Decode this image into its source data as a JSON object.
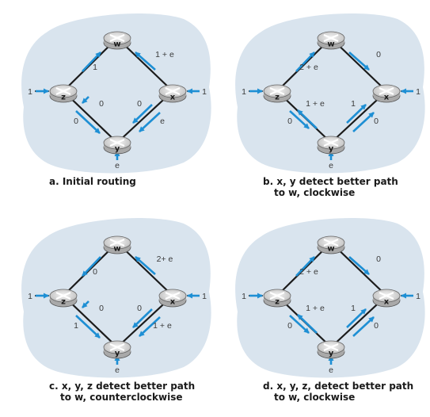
{
  "panels": [
    {
      "caption_letter": "a.",
      "caption_lines": [
        "Initial routing"
      ],
      "routers": {
        "w": "w",
        "x": "x",
        "y": "y",
        "z": "z"
      },
      "ext_labels": {
        "z": "1",
        "x": "1",
        "y": "e"
      },
      "link_labels": {
        "zw": "1",
        "xw": "1 + e",
        "zy_up": "0",
        "zy_down": "0",
        "xy_up": "0",
        "xy_down": "e"
      },
      "arrows": {
        "zw": "to-w",
        "xw": "to-w",
        "zy": "z-to-y",
        "xy": "x-to-y"
      }
    },
    {
      "caption_letter": "b.",
      "caption_lines": [
        "x, y detect better path",
        "to w, clockwise"
      ],
      "routers": {
        "w": "w",
        "x": "x",
        "y": "y",
        "z": "z"
      },
      "ext_labels": {
        "z": "1",
        "x": "1",
        "y": "e"
      },
      "link_labels": {
        "zw": "2 + e",
        "xw": "0",
        "zy_up": "1 + e",
        "zy_down": "0",
        "xy_up": "1",
        "xy_down": "0"
      },
      "arrows": {
        "zw": "to-w",
        "xw": "to-x",
        "zy": "y-to-z",
        "xy": "y-to-x"
      }
    },
    {
      "caption_letter": "c.",
      "caption_lines": [
        "x, y, z detect better path",
        "to w, counterclockwise"
      ],
      "routers": {
        "w": "w",
        "x": "x",
        "y": "y",
        "z": "z"
      },
      "ext_labels": {
        "z": "1",
        "x": "1",
        "y": "e"
      },
      "link_labels": {
        "zw": "0",
        "xw": "2+ e",
        "zy_up": "0",
        "zy_down": "1",
        "xy_up": "0",
        "xy_down": "1 + e"
      },
      "arrows": {
        "zw": "to-z",
        "xw": "to-w",
        "zy": "z-to-y",
        "xy": "x-to-y"
      }
    },
    {
      "caption_letter": "d.",
      "caption_lines": [
        "x, y, z, detect better path",
        "to w, clockwise"
      ],
      "routers": {
        "w": "w",
        "x": "x",
        "y": "y",
        "z": "z"
      },
      "ext_labels": {
        "z": "1",
        "x": "1",
        "y": "e"
      },
      "link_labels": {
        "zw": "2 + e",
        "xw": "0",
        "zy_up": "1 + e",
        "zy_down": "0",
        "xy_up": "1",
        "xy_down": "0"
      },
      "arrows": {
        "zw": "to-w",
        "xw": "to-x",
        "zy": "y-to-z",
        "xy": "y-to-x"
      }
    }
  ],
  "colors": {
    "cloud": "#d9e4ee",
    "router_top": "#e8e8e8",
    "router_side": "#a9a9a9",
    "arrow": "#1e8fd4",
    "link": "#1b1b1b"
  }
}
